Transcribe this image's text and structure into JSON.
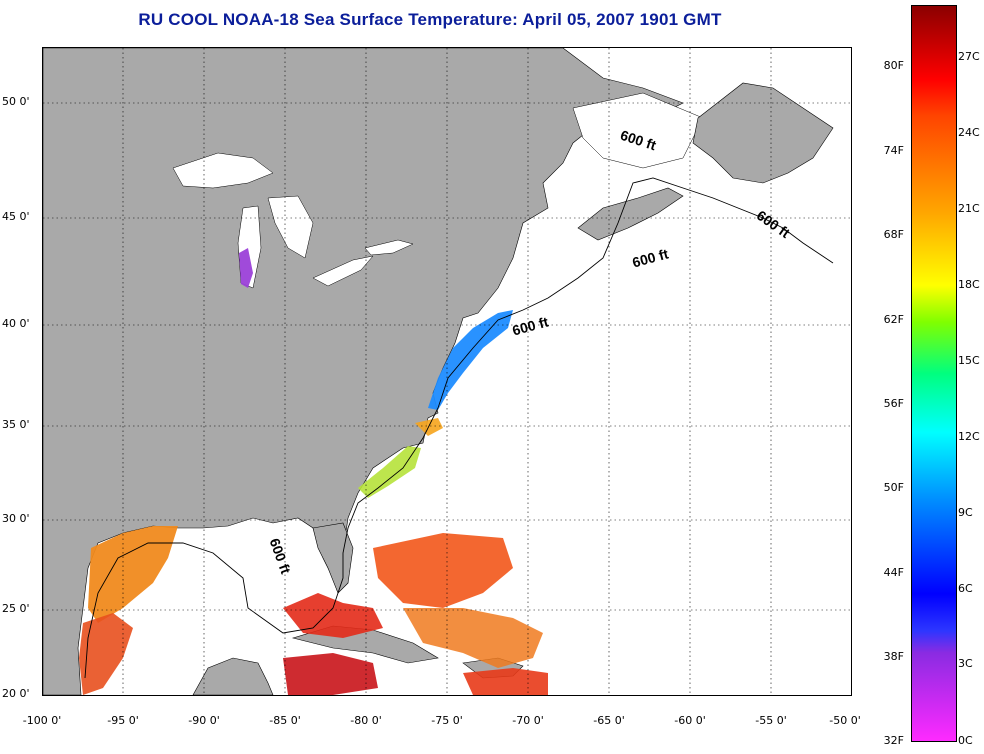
{
  "title": "RU COOL  NOAA-18  Sea Surface Temperature:  April 05, 2007 1901 GMT",
  "latitude_labels": [
    "50 0'",
    "45 0'",
    "40 0'",
    "35 0'",
    "30 0'",
    "25 0'",
    "20 0'"
  ],
  "longitude_labels": [
    "-100 0'",
    "-95 0'",
    "-90 0'",
    "-85 0'",
    "-80 0'",
    "-75 0'",
    "-70 0'",
    "-65 0'",
    "-60 0'",
    "-55 0'",
    "-50 0'"
  ],
  "contour_label": "600 ft",
  "colorbar": {
    "fahrenheit_labels": [
      "80F",
      "74F",
      "68F",
      "62F",
      "56F",
      "50F",
      "44F",
      "38F",
      "32F"
    ],
    "celsius_labels": [
      "27C",
      "24C",
      "21C",
      "18C",
      "15C",
      "12C",
      "9C",
      "6C",
      "3C",
      "0C"
    ]
  },
  "colors": {
    "land": "#a9a9a9",
    "ocean_no_data": "#ffffff",
    "title": "#0b1e9a"
  }
}
